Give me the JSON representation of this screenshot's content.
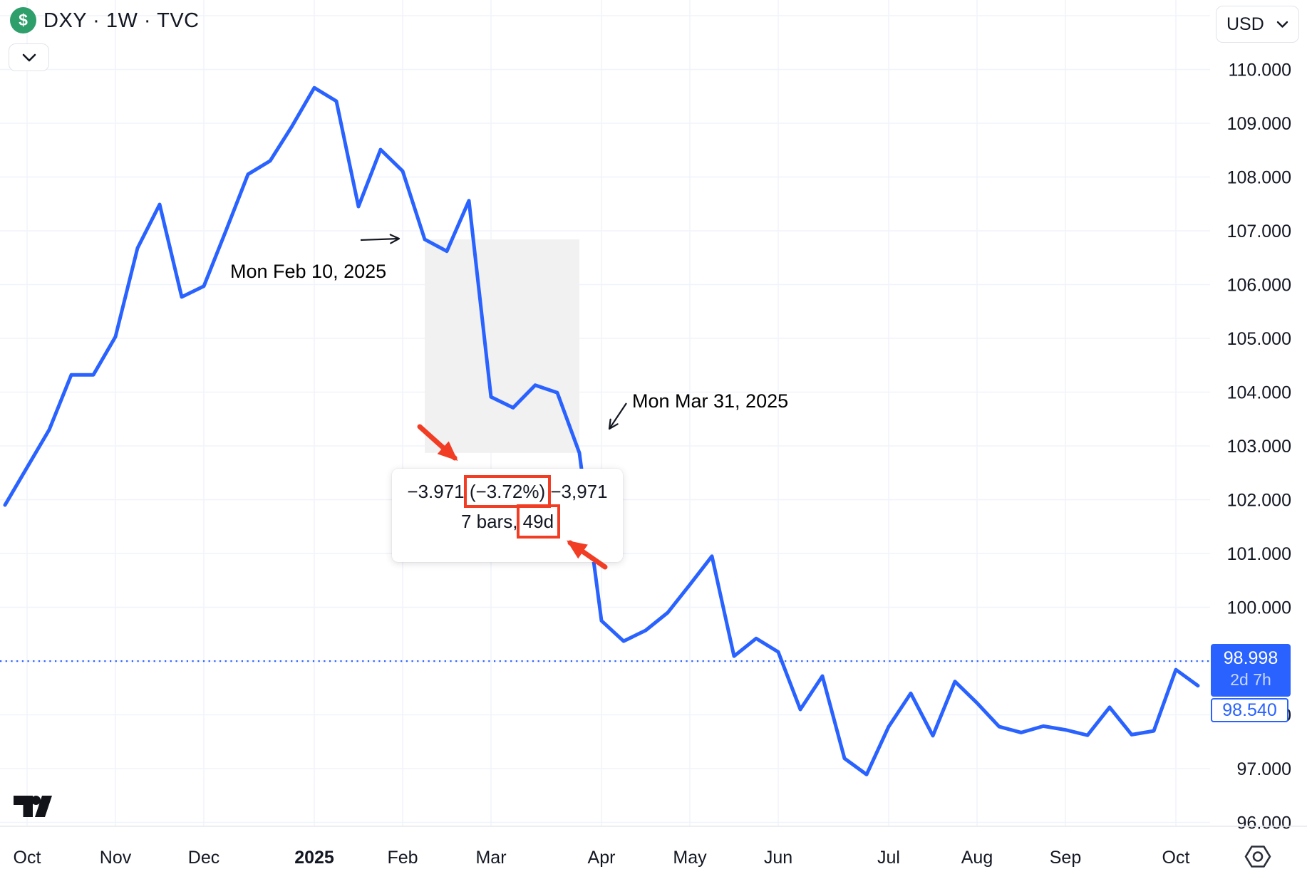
{
  "header": {
    "symbol_title": "DXY · 1W · TVC",
    "currency_selector": "USD"
  },
  "annotations": {
    "feb10_label": "Mon Feb 10, 2025",
    "mar31_label": "Mon Mar 31, 2025"
  },
  "measure": {
    "change_abs": "−3.971",
    "change_pct": "(−3.72%)",
    "change_ticks": "−3,971",
    "bars_label": "7 bars,",
    "duration_label": "49d"
  },
  "price_labels": {
    "last_price": "98.998",
    "countdown": "2d 7h",
    "secondary_price": "98.540"
  },
  "colors": {
    "line_blue": "#2962FF",
    "annotation_red": "#F23D25",
    "annotation_black": "#131722",
    "icon_green": "#2E9E6B",
    "text_dark": "#131722",
    "grid": "#f0f3fa",
    "measure_fill": "#f1f1f2"
  },
  "chart_data": {
    "type": "line",
    "symbol": "DXY",
    "timeframe": "1W",
    "exchange": "TVC",
    "currency": "USD",
    "title": "DXY · 1W · TVC",
    "y_axis": {
      "min": 96,
      "max": 110,
      "tick_step": 1,
      "format_decimals": 3,
      "extra_gridline": 111,
      "side": "right"
    },
    "x_axis": {
      "unit": "week",
      "ticks": [
        {
          "label": "Oct",
          "week": 0,
          "bold": false
        },
        {
          "label": "Nov",
          "week": 4,
          "bold": false
        },
        {
          "label": "Dec",
          "week": 8,
          "bold": false
        },
        {
          "label": "2025",
          "week": 13,
          "bold": true
        },
        {
          "label": "Feb",
          "week": 17,
          "bold": false
        },
        {
          "label": "Mar",
          "week": 21,
          "bold": false
        },
        {
          "label": "Apr",
          "week": 26,
          "bold": false
        },
        {
          "label": "May",
          "week": 30,
          "bold": false
        },
        {
          "label": "Jun",
          "week": 34,
          "bold": false
        },
        {
          "label": "Jul",
          "week": 39,
          "bold": false
        },
        {
          "label": "Aug",
          "week": 43,
          "bold": false
        },
        {
          "label": "Sep",
          "week": 47,
          "bold": false
        },
        {
          "label": "Oct",
          "week": 52,
          "bold": false
        }
      ]
    },
    "series": [
      {
        "date": "2024-09-30",
        "close": 101.9
      },
      {
        "date": "2024-10-07",
        "close": 102.6
      },
      {
        "date": "2024-10-14",
        "close": 103.3
      },
      {
        "date": "2024-10-21",
        "close": 104.32
      },
      {
        "date": "2024-10-28",
        "close": 104.32
      },
      {
        "date": "2024-11-04",
        "close": 105.03
      },
      {
        "date": "2024-11-11",
        "close": 106.68
      },
      {
        "date": "2024-11-18",
        "close": 107.49
      },
      {
        "date": "2024-11-25",
        "close": 105.77
      },
      {
        "date": "2024-12-02",
        "close": 105.97
      },
      {
        "date": "2024-12-09",
        "close": 107.0
      },
      {
        "date": "2024-12-16",
        "close": 108.05
      },
      {
        "date": "2024-12-23",
        "close": 108.3
      },
      {
        "date": "2024-12-30",
        "close": 108.95
      },
      {
        "date": "2025-01-06",
        "close": 109.66
      },
      {
        "date": "2025-01-13",
        "close": 109.41
      },
      {
        "date": "2025-01-20",
        "close": 107.45
      },
      {
        "date": "2025-01-27",
        "close": 108.51
      },
      {
        "date": "2025-02-03",
        "close": 108.11
      },
      {
        "date": "2025-02-10",
        "close": 106.84
      },
      {
        "date": "2025-02-17",
        "close": 106.62
      },
      {
        "date": "2025-02-24",
        "close": 107.56
      },
      {
        "date": "2025-03-03",
        "close": 103.91
      },
      {
        "date": "2025-03-10",
        "close": 103.71
      },
      {
        "date": "2025-03-17",
        "close": 104.13
      },
      {
        "date": "2025-03-24",
        "close": 103.99
      },
      {
        "date": "2025-03-31",
        "close": 102.87
      },
      {
        "date": "2025-04-07",
        "close": 99.75
      },
      {
        "date": "2025-04-14",
        "close": 99.37
      },
      {
        "date": "2025-04-21",
        "close": 99.57
      },
      {
        "date": "2025-04-28",
        "close": 99.9
      },
      {
        "date": "2025-05-05",
        "close": 100.42
      },
      {
        "date": "2025-05-12",
        "close": 100.95
      },
      {
        "date": "2025-05-19",
        "close": 99.09
      },
      {
        "date": "2025-05-26",
        "close": 99.42
      },
      {
        "date": "2025-06-02",
        "close": 99.17
      },
      {
        "date": "2025-06-09",
        "close": 98.1
      },
      {
        "date": "2025-06-16",
        "close": 98.72
      },
      {
        "date": "2025-06-23",
        "close": 97.19
      },
      {
        "date": "2025-06-30",
        "close": 96.89
      },
      {
        "date": "2025-07-07",
        "close": 97.78
      },
      {
        "date": "2025-07-14",
        "close": 98.4
      },
      {
        "date": "2025-07-21",
        "close": 97.61
      },
      {
        "date": "2025-07-28",
        "close": 98.62
      },
      {
        "date": "2025-08-04",
        "close": 98.22
      },
      {
        "date": "2025-08-11",
        "close": 97.78
      },
      {
        "date": "2025-08-18",
        "close": 97.67
      },
      {
        "date": "2025-08-25",
        "close": 97.79
      },
      {
        "date": "2025-09-01",
        "close": 97.72
      },
      {
        "date": "2025-09-08",
        "close": 97.62
      },
      {
        "date": "2025-09-15",
        "close": 98.14
      },
      {
        "date": "2025-09-22",
        "close": 97.63
      },
      {
        "date": "2025-09-29",
        "close": 97.7
      },
      {
        "date": "2025-10-06",
        "close": 98.84
      },
      {
        "date": "2025-10-13",
        "close": 98.54
      }
    ],
    "current_price": 98.998,
    "current_price_countdown": "2d 7h",
    "secondary_price": 98.54,
    "measurement": {
      "from_date": "2025-02-10",
      "to_date": "2025-03-31",
      "from_price": 106.84,
      "to_price": 102.87,
      "bars": 7,
      "days": 49,
      "change_abs": -3.971,
      "change_pct": -3.72
    },
    "legend_position": "none",
    "grid": true
  }
}
